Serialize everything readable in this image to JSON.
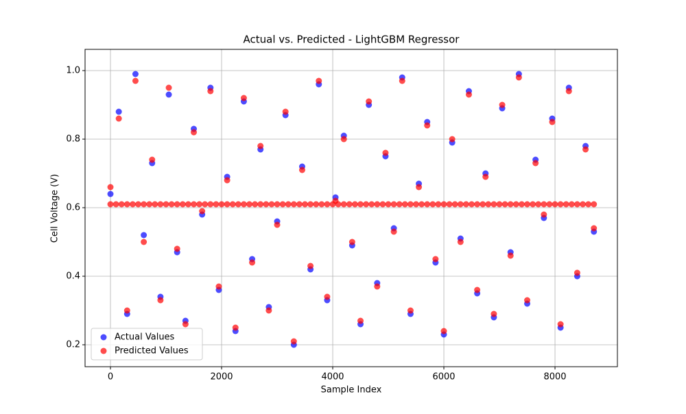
{
  "chart_data": {
    "type": "scatter",
    "title": "Actual vs. Predicted - LightGBM Regressor",
    "x_label": "Sample Index",
    "y_label": "Cell Voltage (V)",
    "xlim": [
      -457,
      9123
    ],
    "ylim": [
      0.136,
      1.062
    ],
    "xticks": [
      0,
      2000,
      4000,
      6000,
      8000
    ],
    "yticks": [
      0.2,
      0.4,
      0.6,
      0.8,
      {
        "value": 1,
        "label": "1.0"
      }
    ],
    "grid": true,
    "legend": "lower left",
    "series": [
      {
        "name": "Actual Values",
        "color": "#0000ff",
        "x": [
          0,
          150,
          300,
          450,
          600,
          750,
          900,
          1050,
          1200,
          1350,
          1500,
          1650,
          1800,
          1950,
          2100,
          2250,
          2400,
          2550,
          2700,
          2850,
          3000,
          3150,
          3300,
          3450,
          3600,
          3750,
          3900,
          4050,
          4200,
          4350,
          4500,
          4650,
          4800,
          4950,
          5100,
          5250,
          5400,
          5550,
          5700,
          5850,
          6000,
          6150,
          6300,
          6450,
          6600,
          6750,
          6900,
          7050,
          7200,
          7350,
          7500,
          7650,
          7800,
          7950,
          8100,
          8250,
          8400,
          8550,
          8700
        ],
        "values": [
          0.64,
          0.88,
          0.29,
          0.99,
          0.52,
          0.73,
          0.34,
          0.93,
          0.47,
          0.27,
          0.83,
          0.58,
          0.95,
          0.36,
          0.69,
          0.24,
          0.91,
          0.45,
          0.77,
          0.31,
          0.56,
          0.87,
          0.2,
          0.72,
          0.42,
          0.96,
          0.33,
          0.63,
          0.81,
          0.49,
          0.26,
          0.9,
          0.38,
          0.75,
          0.54,
          0.98,
          0.29,
          0.67,
          0.85,
          0.44,
          0.23,
          0.79,
          0.51,
          0.94,
          0.35,
          0.7,
          0.28,
          0.89,
          0.47,
          0.99,
          0.32,
          0.74,
          0.57,
          0.86,
          0.25,
          0.95,
          0.4,
          0.78,
          0.53
        ]
      },
      {
        "name": "Predicted Values",
        "color": "#ff0000",
        "x": [
          0,
          150,
          300,
          450,
          600,
          750,
          900,
          1050,
          1200,
          1350,
          1500,
          1650,
          1800,
          1950,
          2100,
          2250,
          2400,
          2550,
          2700,
          2850,
          3000,
          3150,
          3300,
          3450,
          3600,
          3750,
          3900,
          4050,
          4200,
          4350,
          4500,
          4650,
          4800,
          4950,
          5100,
          5250,
          5400,
          5550,
          5700,
          5850,
          6000,
          6150,
          6300,
          6450,
          6600,
          6750,
          6900,
          7050,
          7200,
          7350,
          7500,
          7650,
          7800,
          7950,
          8100,
          8250,
          8400,
          8550,
          8700,
          0,
          100,
          200,
          300,
          400,
          500,
          600,
          700,
          800,
          900,
          1000,
          1100,
          1200,
          1300,
          1400,
          1500,
          1600,
          1700,
          1800,
          1900,
          2000,
          2100,
          2200,
          2300,
          2400,
          2500,
          2600,
          2700,
          2800,
          2900,
          3000,
          3100,
          3200,
          3300,
          3400,
          3500,
          3600,
          3700,
          3800,
          3900,
          4000,
          4100,
          4200,
          4300,
          4400,
          4500,
          4600,
          4700,
          4800,
          4900,
          5000,
          5100,
          5200,
          5300,
          5400,
          5500,
          5600,
          5700,
          5800,
          5900,
          6000,
          6100,
          6200,
          6300,
          6400,
          6500,
          6600,
          6700,
          6800,
          6900,
          7000,
          7100,
          7200,
          7300,
          7400,
          7500,
          7600,
          7700,
          7800,
          7900,
          8000,
          8100,
          8200,
          8300,
          8400,
          8500,
          8600,
          8700
        ],
        "values": [
          0.66,
          0.86,
          0.3,
          0.97,
          0.5,
          0.74,
          0.33,
          0.95,
          0.48,
          0.26,
          0.82,
          0.59,
          0.94,
          0.37,
          0.68,
          0.25,
          0.92,
          0.44,
          0.78,
          0.3,
          0.55,
          0.88,
          0.21,
          0.71,
          0.43,
          0.97,
          0.34,
          0.62,
          0.8,
          0.5,
          0.27,
          0.91,
          0.37,
          0.76,
          0.53,
          0.97,
          0.3,
          0.66,
          0.84,
          0.45,
          0.24,
          0.8,
          0.5,
          0.93,
          0.36,
          0.69,
          0.29,
          0.9,
          0.46,
          0.98,
          0.33,
          0.73,
          0.58,
          0.85,
          0.26,
          0.94,
          0.41,
          0.77,
          0.54,
          0.61,
          0.61,
          0.61,
          0.61,
          0.61,
          0.61,
          0.61,
          0.61,
          0.61,
          0.61,
          0.61,
          0.61,
          0.61,
          0.61,
          0.61,
          0.61,
          0.61,
          0.61,
          0.61,
          0.61,
          0.61,
          0.61,
          0.61,
          0.61,
          0.61,
          0.61,
          0.61,
          0.61,
          0.61,
          0.61,
          0.61,
          0.61,
          0.61,
          0.61,
          0.61,
          0.61,
          0.61,
          0.61,
          0.61,
          0.61,
          0.61,
          0.61,
          0.61,
          0.61,
          0.61,
          0.61,
          0.61,
          0.61,
          0.61,
          0.61,
          0.61,
          0.61,
          0.61,
          0.61,
          0.61,
          0.61,
          0.61,
          0.61,
          0.61,
          0.61,
          0.61,
          0.61,
          0.61,
          0.61,
          0.61,
          0.61,
          0.61,
          0.61,
          0.61,
          0.61,
          0.61,
          0.61,
          0.61,
          0.61,
          0.61,
          0.61,
          0.61,
          0.61,
          0.61,
          0.61,
          0.61,
          0.61,
          0.61,
          0.61,
          0.61,
          0.61,
          0.61,
          0.61
        ]
      }
    ]
  }
}
